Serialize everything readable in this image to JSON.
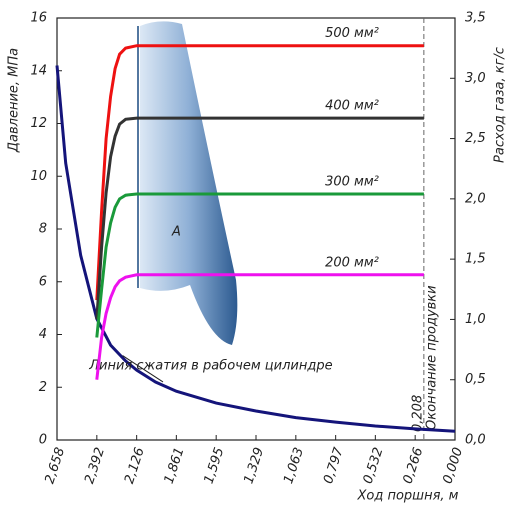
{
  "chart_data": {
    "type": "line",
    "x_label": "Ход поршня, м",
    "y_label": "Давление, МПа",
    "y2_label": "Расход газа, кг/с",
    "xlim": [
      2.658,
      0
    ],
    "xticks": [
      {
        "value": 2.658,
        "label": "2,658"
      },
      {
        "value": 2.392,
        "label": "2,392"
      },
      {
        "value": 2.126,
        "label": "2,126"
      },
      {
        "value": 1.861,
        "label": "1,861"
      },
      {
        "value": 1.595,
        "label": "1,595"
      },
      {
        "value": 1.329,
        "label": "1,329"
      },
      {
        "value": 1.063,
        "label": "1,063"
      },
      {
        "value": 0.797,
        "label": "0,797"
      },
      {
        "value": 0.532,
        "label": "0,532"
      },
      {
        "value": 0.266,
        "label": "0,266"
      },
      {
        "value": 0,
        "label": "0,000"
      }
    ],
    "ylim": [
      0,
      16
    ],
    "yticks": [
      0,
      2,
      4,
      6,
      8,
      10,
      12,
      14,
      16
    ],
    "y2lim": [
      0,
      3.5
    ],
    "y2ticks": [
      {
        "value": 0,
        "label": "0,0"
      },
      {
        "value": 0.5,
        "label": "0,5"
      },
      {
        "value": 1,
        "label": "1,0"
      },
      {
        "value": 1.5,
        "label": "1,5"
      },
      {
        "value": 2,
        "label": "2,0"
      },
      {
        "value": 2.5,
        "label": "2,5"
      },
      {
        "value": 3,
        "label": "3,0"
      },
      {
        "value": 3.5,
        "label": "3,5"
      }
    ],
    "series": [
      {
        "name": "Линия сжатия в рабочем цилиндре",
        "color": "#14147a",
        "x": [
          2.658,
          2.6,
          2.5,
          2.392,
          2.3,
          2.2,
          2.126,
          2,
          1.861,
          1.595,
          1.329,
          1.063,
          0.797,
          0.532,
          0.266,
          0
        ],
        "values": [
          14.2,
          10.5,
          7,
          4.6,
          3.6,
          3,
          2.65,
          2.2,
          1.85,
          1.4,
          1.1,
          0.85,
          0.68,
          0.53,
          0.42,
          0.33
        ]
      },
      {
        "name": "500 мм²",
        "color": "#ee1111",
        "axis": "y2",
        "x": [
          2.392,
          2.36,
          2.33,
          2.3,
          2.27,
          2.24,
          2.2,
          2.126,
          1.861,
          1.595,
          1.329,
          1.063,
          0.797,
          0.532,
          0.208
        ],
        "values": [
          1.16,
          1.9,
          2.5,
          2.85,
          3.08,
          3.2,
          3.25,
          3.27,
          3.27,
          3.27,
          3.27,
          3.27,
          3.27,
          3.27,
          3.27
        ]
      },
      {
        "name": "400 мм²",
        "color": "#333333",
        "axis": "y2",
        "x": [
          2.392,
          2.36,
          2.33,
          2.3,
          2.27,
          2.24,
          2.2,
          2.126,
          1.861,
          1.595,
          1.329,
          1.063,
          0.797,
          0.532,
          0.208
        ],
        "values": [
          1,
          1.6,
          2.05,
          2.35,
          2.52,
          2.62,
          2.66,
          2.67,
          2.67,
          2.67,
          2.67,
          2.67,
          2.67,
          2.67,
          2.67
        ]
      },
      {
        "name": "300 мм²",
        "color": "#1a9a3a",
        "axis": "y2",
        "x": [
          2.392,
          2.36,
          2.33,
          2.3,
          2.27,
          2.24,
          2.2,
          2.126,
          1.861,
          1.595,
          1.329,
          1.063,
          0.797,
          0.532,
          0.208
        ],
        "values": [
          0.85,
          1.25,
          1.6,
          1.8,
          1.93,
          2,
          2.03,
          2.04,
          2.04,
          2.04,
          2.04,
          2.04,
          2.04,
          2.04,
          2.04
        ]
      },
      {
        "name": "200 мм²",
        "color": "#ee11ee",
        "axis": "y2",
        "x": [
          2.392,
          2.36,
          2.33,
          2.3,
          2.27,
          2.24,
          2.2,
          2.126,
          1.861,
          1.595,
          1.329,
          1.063,
          0.797,
          0.532,
          0.208
        ],
        "values": [
          0.5,
          0.85,
          1.05,
          1.18,
          1.27,
          1.32,
          1.35,
          1.37,
          1.37,
          1.37,
          1.37,
          1.37,
          1.37,
          1.37,
          1.37
        ]
      }
    ],
    "region_label": "A",
    "blowdown_end": {
      "value": 0.208,
      "label": "0,208"
    },
    "blowdown_label": "Окончание продувки"
  }
}
